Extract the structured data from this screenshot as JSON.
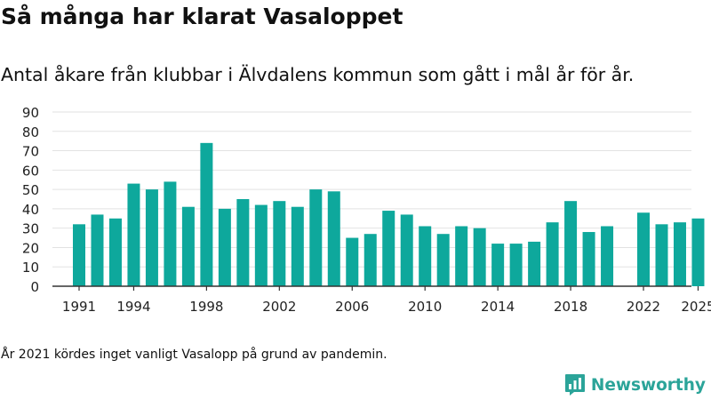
{
  "title": "Så många har klarat Vasaloppet",
  "subtitle": "Antal åkare från klubbar i Älvdalens kommun som gått i mål år för år.",
  "note": "År 2021 kördes inget vanligt Vasalopp på grund av pandemin.",
  "brand": "Newsworthy",
  "colors": {
    "bar": "#0ea89c",
    "grid": "#e2e2e2",
    "axis": "#333333",
    "brand": "#2ba499"
  },
  "chart_data": {
    "type": "bar",
    "title": "Så många har klarat Vasaloppet",
    "xlabel": "",
    "ylabel": "",
    "ylim": [
      0,
      90
    ],
    "yticks": [
      "0",
      "10",
      "20",
      "30",
      "40",
      "50",
      "60",
      "70",
      "80",
      "90"
    ],
    "xticks": [
      "1991",
      "1994",
      "1998",
      "2002",
      "2006",
      "2010",
      "2014",
      "2018",
      "2022",
      "2025"
    ],
    "grid": true,
    "categories": [
      1991,
      1992,
      1993,
      1994,
      1995,
      1996,
      1997,
      1998,
      1999,
      2000,
      2001,
      2002,
      2003,
      2004,
      2005,
      2006,
      2007,
      2008,
      2009,
      2010,
      2011,
      2012,
      2013,
      2014,
      2015,
      2016,
      2017,
      2018,
      2019,
      2020,
      2021,
      2022,
      2023,
      2024,
      2025
    ],
    "values": [
      32,
      37,
      35,
      53,
      50,
      54,
      41,
      74,
      40,
      45,
      42,
      44,
      41,
      50,
      49,
      25,
      27,
      39,
      37,
      31,
      27,
      31,
      30,
      22,
      22,
      23,
      33,
      44,
      28,
      31,
      null,
      38,
      32,
      33,
      35
    ]
  }
}
